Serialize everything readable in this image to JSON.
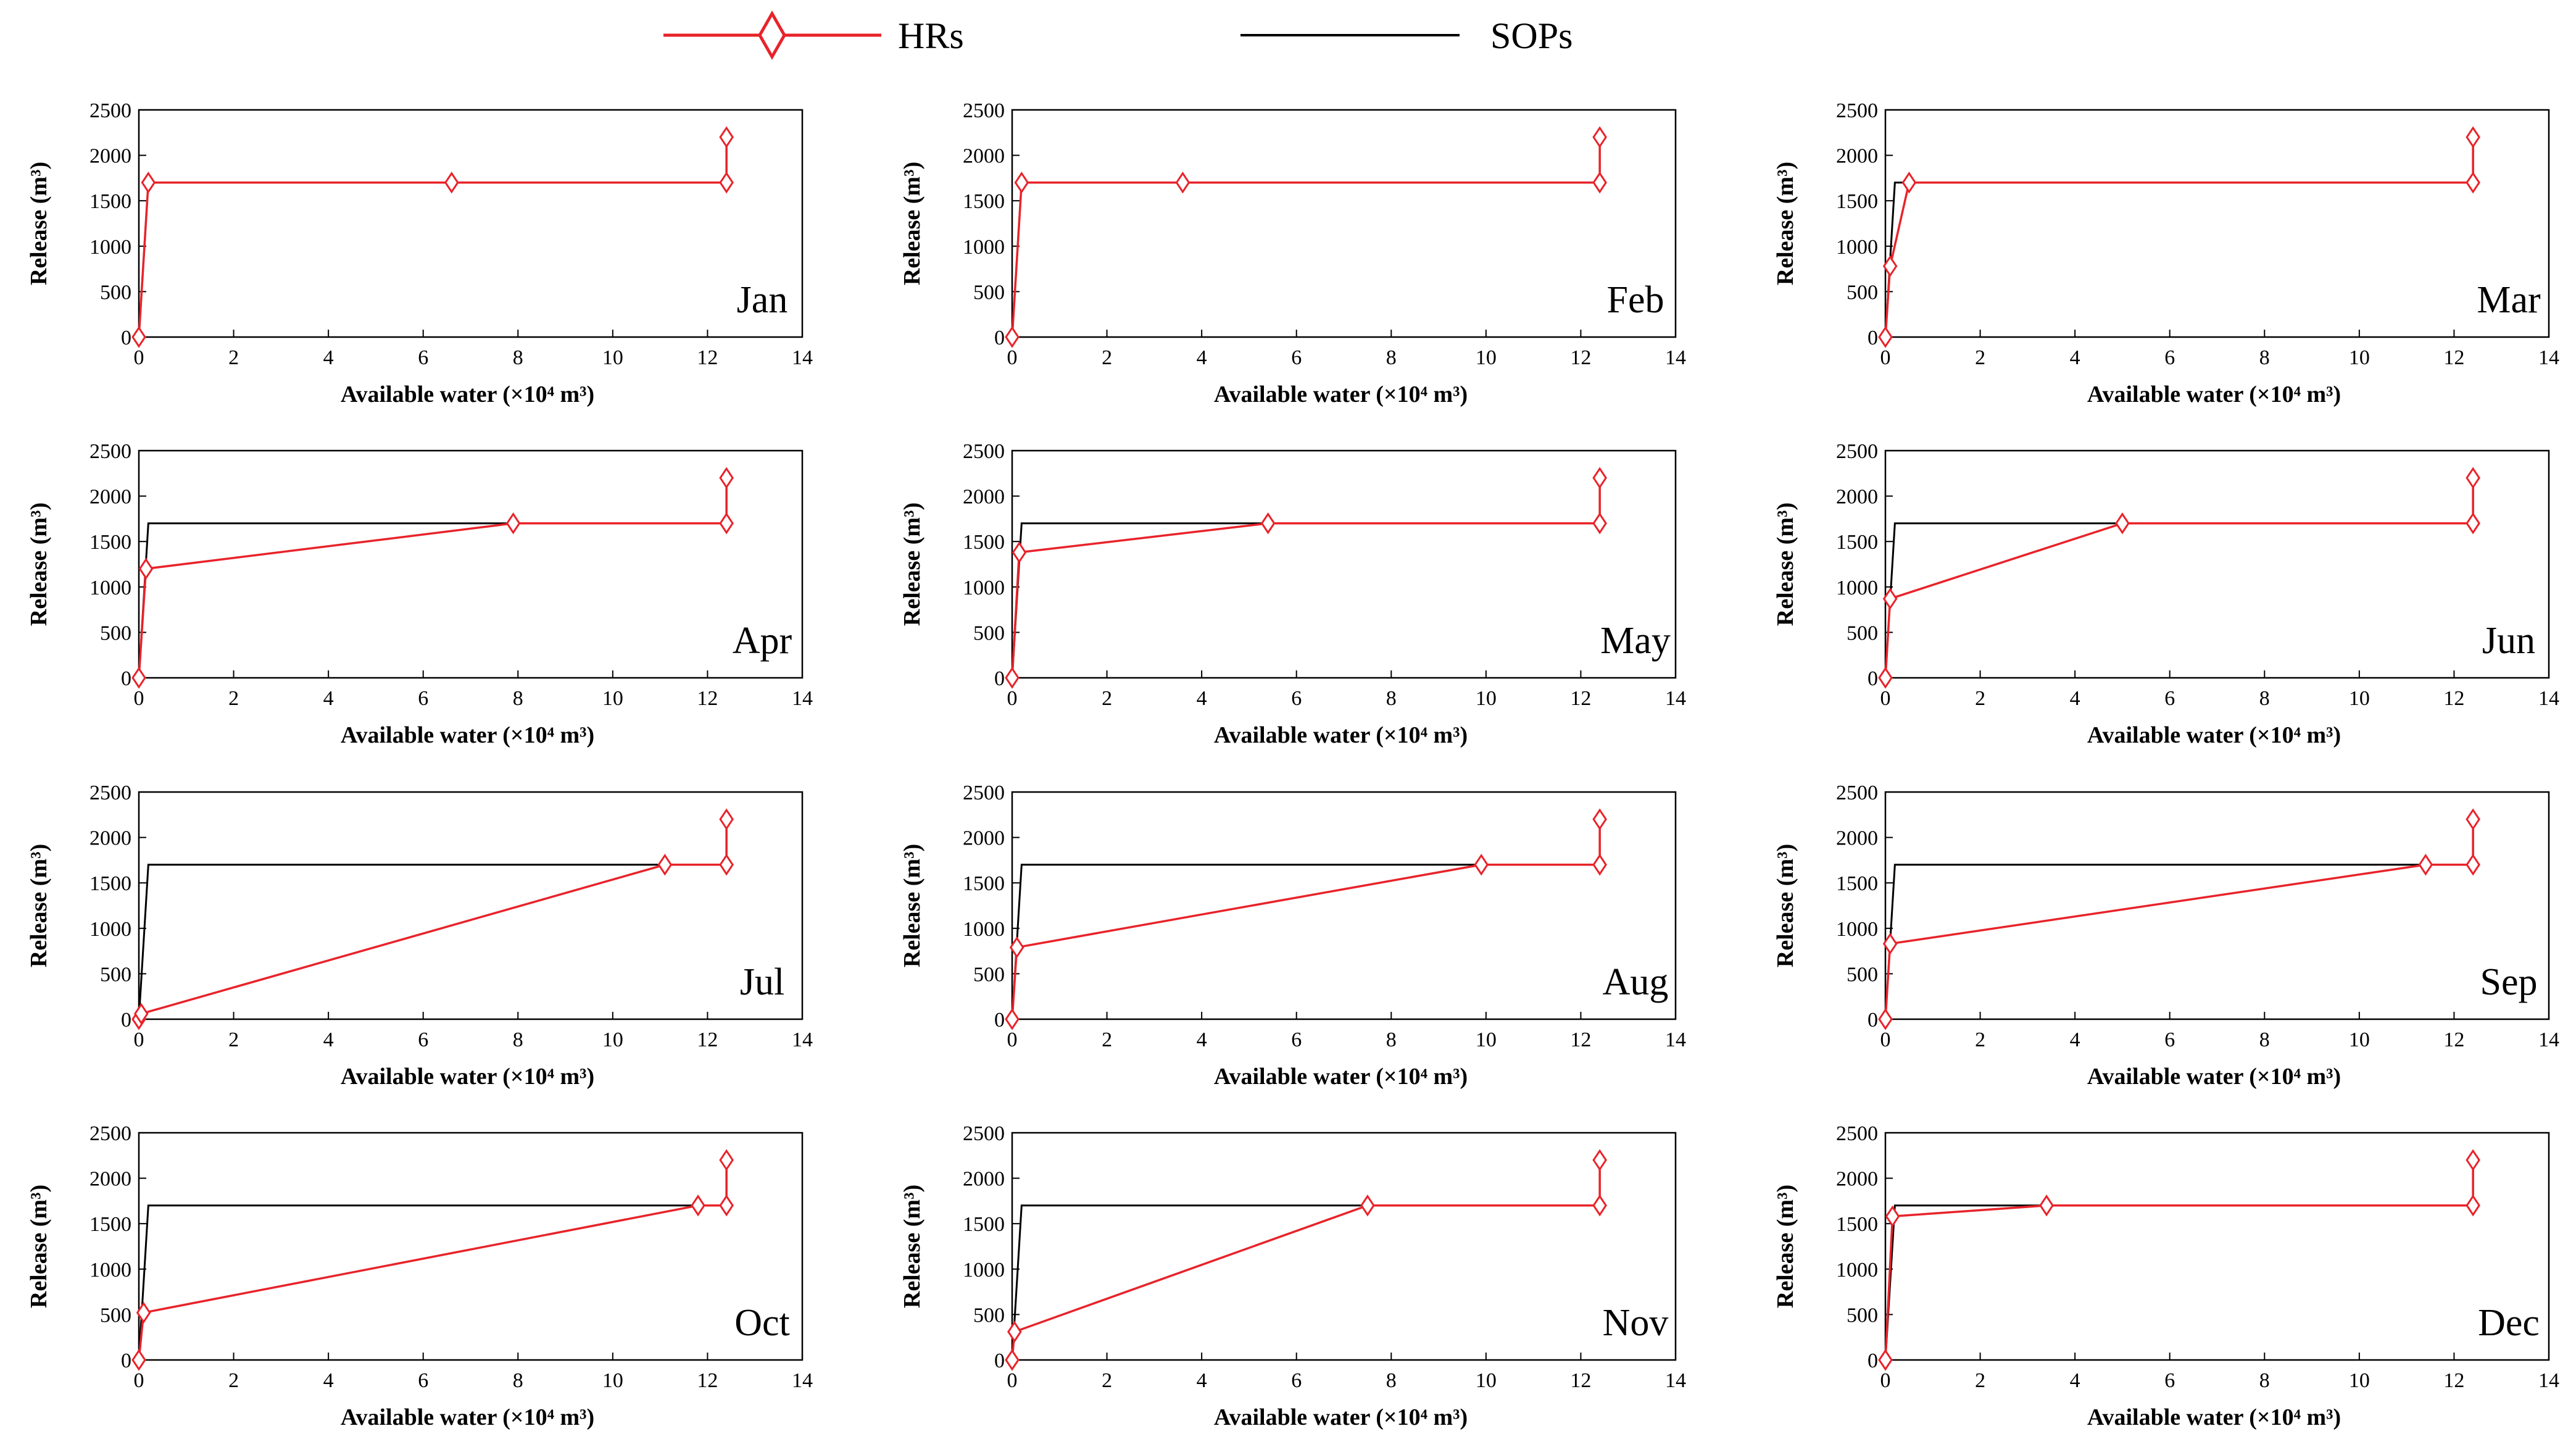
{
  "legend": {
    "hrs_label": "HRs",
    "sops_label": "SOPs",
    "hrs_color": "#e8232a",
    "sops_color": "#000000"
  },
  "chart_data": {
    "type": "line",
    "layout": "4x3 small multiples",
    "xlabel": "Available water (×10⁴ m³)",
    "ylabel": "Release (m³)",
    "xlim": [
      0,
      14
    ],
    "ylim": [
      0,
      2500
    ],
    "xticks": [
      0,
      2,
      4,
      6,
      8,
      10,
      12,
      14
    ],
    "yticks": [
      0,
      500,
      1000,
      1500,
      2000,
      2500
    ],
    "panels": [
      {
        "month": "Jan",
        "sops": {
          "x": [
            0,
            0.2,
            12.4,
            12.4
          ],
          "y": [
            0,
            1700,
            1700,
            2200
          ]
        },
        "hrs": {
          "x": [
            0,
            0.2,
            6.6,
            12.4,
            12.4
          ],
          "y": [
            0,
            1700,
            1700,
            1700,
            2200
          ]
        }
      },
      {
        "month": "Feb",
        "sops": {
          "x": [
            0,
            0.2,
            12.4,
            12.4
          ],
          "y": [
            0,
            1700,
            1700,
            2200
          ]
        },
        "hrs": {
          "x": [
            0,
            0.2,
            3.6,
            12.4,
            12.4
          ],
          "y": [
            0,
            1700,
            1700,
            1700,
            2200
          ]
        }
      },
      {
        "month": "Mar",
        "sops": {
          "x": [
            0,
            0.2,
            12.4,
            12.4
          ],
          "y": [
            0,
            1700,
            1700,
            2200
          ]
        },
        "hrs": {
          "x": [
            0,
            0.1,
            0.5,
            12.4,
            12.4
          ],
          "y": [
            0,
            780,
            1700,
            1700,
            2200
          ]
        }
      },
      {
        "month": "Apr",
        "sops": {
          "x": [
            0,
            0.2,
            12.4,
            12.4
          ],
          "y": [
            0,
            1700,
            1700,
            2200
          ]
        },
        "hrs": {
          "x": [
            0,
            0.15,
            7.9,
            12.4,
            12.4
          ],
          "y": [
            0,
            1200,
            1700,
            1700,
            2200
          ]
        }
      },
      {
        "month": "May",
        "sops": {
          "x": [
            0,
            0.2,
            12.4,
            12.4
          ],
          "y": [
            0,
            1700,
            1700,
            2200
          ]
        },
        "hrs": {
          "x": [
            0,
            0.15,
            5.4,
            12.4,
            12.4
          ],
          "y": [
            0,
            1380,
            1700,
            1700,
            2200
          ]
        }
      },
      {
        "month": "Jun",
        "sops": {
          "x": [
            0,
            0.2,
            12.4,
            12.4
          ],
          "y": [
            0,
            1700,
            1700,
            2200
          ]
        },
        "hrs": {
          "x": [
            0,
            0.1,
            5.0,
            12.4,
            12.4
          ],
          "y": [
            0,
            870,
            1700,
            1700,
            2200
          ]
        }
      },
      {
        "month": "Jul",
        "sops": {
          "x": [
            0,
            0.2,
            12.4,
            12.4
          ],
          "y": [
            0,
            1700,
            1700,
            2200
          ]
        },
        "hrs": {
          "x": [
            0,
            0.05,
            11.1,
            12.4,
            12.4
          ],
          "y": [
            0,
            60,
            1700,
            1700,
            2200
          ]
        }
      },
      {
        "month": "Aug",
        "sops": {
          "x": [
            0,
            0.2,
            12.4,
            12.4
          ],
          "y": [
            0,
            1700,
            1700,
            2200
          ]
        },
        "hrs": {
          "x": [
            0,
            0.1,
            9.9,
            12.4,
            12.4
          ],
          "y": [
            0,
            790,
            1700,
            1700,
            2200
          ]
        }
      },
      {
        "month": "Sep",
        "sops": {
          "x": [
            0,
            0.2,
            12.4,
            12.4
          ],
          "y": [
            0,
            1700,
            1700,
            2200
          ]
        },
        "hrs": {
          "x": [
            0,
            0.1,
            11.4,
            12.4,
            12.4
          ],
          "y": [
            0,
            830,
            1700,
            1700,
            2200
          ]
        }
      },
      {
        "month": "Oct",
        "sops": {
          "x": [
            0,
            0.2,
            12.4,
            12.4
          ],
          "y": [
            0,
            1700,
            1700,
            2200
          ]
        },
        "hrs": {
          "x": [
            0,
            0.1,
            11.8,
            12.4,
            12.4
          ],
          "y": [
            0,
            520,
            1700,
            1700,
            2200
          ]
        }
      },
      {
        "month": "Nov",
        "sops": {
          "x": [
            0,
            0.2,
            12.4,
            12.4
          ],
          "y": [
            0,
            1700,
            1700,
            2200
          ]
        },
        "hrs": {
          "x": [
            0,
            0.05,
            7.5,
            12.4,
            12.4
          ],
          "y": [
            0,
            310,
            1700,
            1700,
            2200
          ]
        }
      },
      {
        "month": "Dec",
        "sops": {
          "x": [
            0,
            0.2,
            12.4,
            12.4
          ],
          "y": [
            0,
            1700,
            1700,
            2200
          ]
        },
        "hrs": {
          "x": [
            0,
            0.15,
            3.4,
            12.4,
            12.4
          ],
          "y": [
            0,
            1580,
            1700,
            1700,
            2200
          ]
        }
      }
    ]
  }
}
